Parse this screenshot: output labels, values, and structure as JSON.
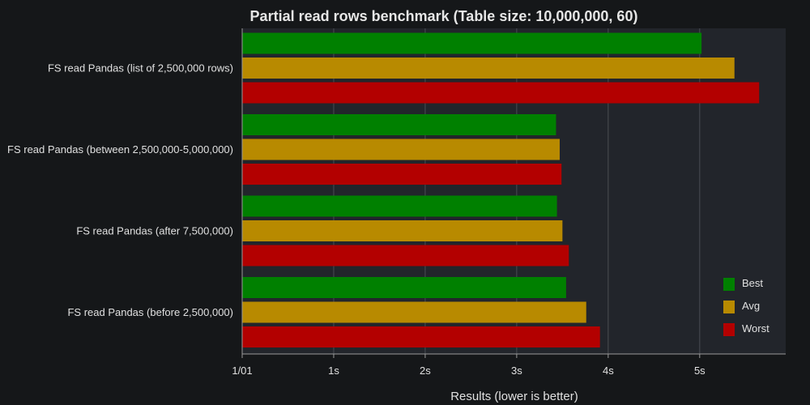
{
  "chart_data": {
    "type": "bar",
    "orientation": "horizontal",
    "title": "Partial read rows benchmark (Table size: 10,000,000, 60)",
    "xlabel": "Results (lower is better)",
    "ylabel": "",
    "xlim": [
      0,
      5.94
    ],
    "x_ticks": [
      0,
      1,
      2,
      3,
      4,
      5
    ],
    "x_tick_labels": [
      "1/01",
      "1s",
      "2s",
      "3s",
      "4s",
      "5s"
    ],
    "grid": true,
    "legend_position": "bottom-right",
    "categories": [
      "FS read Pandas (list of 2,500,000 rows)",
      "FS read Pandas (between 2,500,000-5,000,000)",
      "FS read Pandas (after 7,500,000)",
      "FS read Pandas (before 2,500,000)"
    ],
    "series": [
      {
        "name": "Best",
        "color": "#008000",
        "values": [
          5.02,
          3.43,
          3.44,
          3.54
        ]
      },
      {
        "name": "Avg",
        "color": "#b88a00",
        "values": [
          5.38,
          3.47,
          3.5,
          3.76
        ]
      },
      {
        "name": "Worst",
        "color": "#b30000",
        "values": [
          5.65,
          3.49,
          3.57,
          3.91
        ]
      }
    ]
  },
  "colors": {
    "page_background": "#151719",
    "plot_background": "#22252b",
    "grid_line": "#4a4d53",
    "axis_line": "#9a9a9a",
    "text": "#e0e0e0"
  }
}
